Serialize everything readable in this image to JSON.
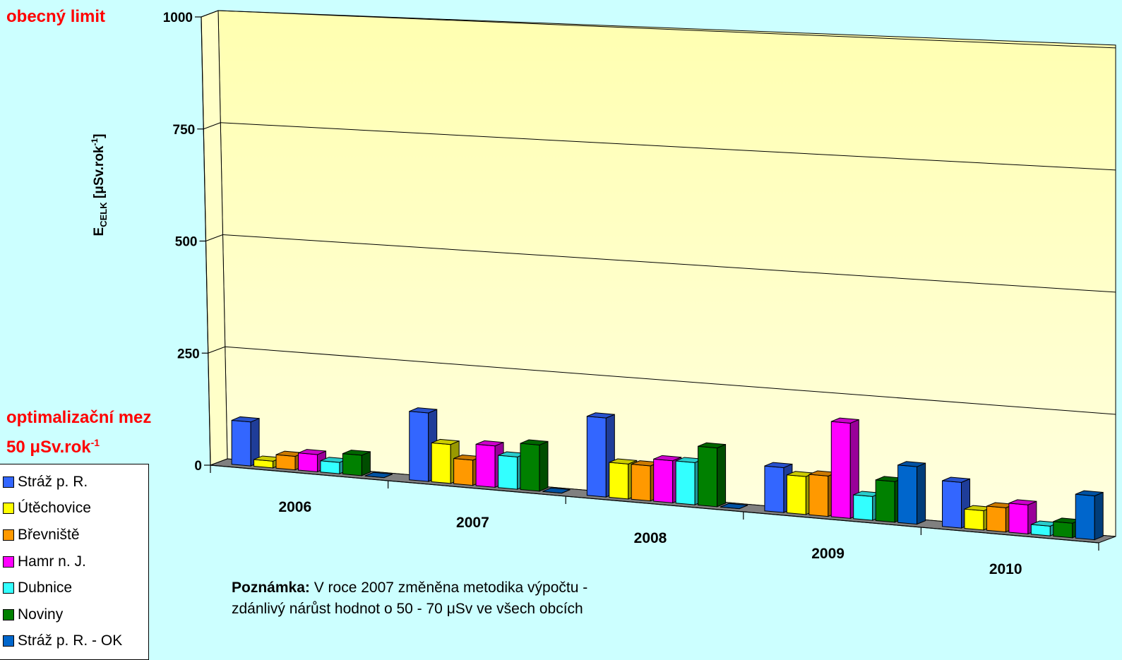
{
  "labels": {
    "general_limit": "obecný limit",
    "optimization_limit": "optimalizační mez",
    "optimization_value": "50 μSv.rok",
    "optimization_sup": "-1"
  },
  "note": {
    "bold": "Poznámka:",
    "line1": " V roce 2007 změněna metodika výpočtu -",
    "line2": "zdánlivý nárůst hodnot o 50 - 70 μSv ve všech obcích"
  },
  "chart_data": {
    "type": "bar",
    "ylabel_main": "E",
    "ylabel_sub": "CELK",
    "ylabel_rest": " [μSv.rok",
    "ylabel_sup": "-1",
    "ylabel_end": "]",
    "categories": [
      "2006",
      "2007",
      "2008",
      "2009",
      "2010"
    ],
    "yticks": [
      "0",
      "250",
      "500",
      "750",
      "1000"
    ],
    "ylim": [
      0,
      1000
    ],
    "legend_position": "bottom-left",
    "series": [
      {
        "name": "Stráž p. R.",
        "color": "#3366ff",
        "values": [
          98,
          150,
          170,
          95,
          95
        ]
      },
      {
        "name": "Útěchovice",
        "color": "#ffff00",
        "values": [
          15,
          85,
          75,
          80,
          40
        ]
      },
      {
        "name": "Břevniště",
        "color": "#ff9900",
        "values": [
          30,
          55,
          75,
          85,
          50
        ]
      },
      {
        "name": "Hamr n. J.",
        "color": "#ff00ff",
        "values": [
          38,
          90,
          90,
          200,
          60
        ]
      },
      {
        "name": "Dubnice",
        "color": "#33ffff",
        "values": [
          25,
          70,
          90,
          50,
          20
        ]
      },
      {
        "name": "Noviny",
        "color": "#008000",
        "values": [
          45,
          100,
          125,
          85,
          30
        ]
      },
      {
        "name": "Stráž p. R. - OK",
        "color": "#0066cc",
        "values": [
          0,
          0,
          0,
          120,
          90
        ]
      }
    ]
  }
}
